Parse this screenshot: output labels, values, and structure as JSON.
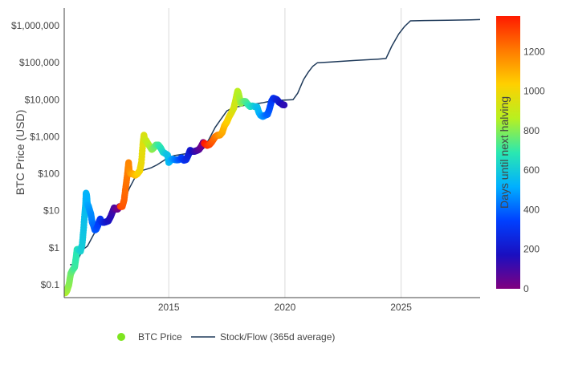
{
  "chart_data": {
    "type": "scatter",
    "ylabel": "BTC Price (USD)",
    "y_scale": "log",
    "ylim": [
      0.045,
      3000000
    ],
    "xlim": [
      2010.5,
      2028.4
    ],
    "y_ticks": [
      {
        "value": 0.1,
        "label": "$0.1"
      },
      {
        "value": 1,
        "label": "$1"
      },
      {
        "value": 10,
        "label": "$10"
      },
      {
        "value": 100,
        "label": "$100"
      },
      {
        "value": 1000,
        "label": "$1,000"
      },
      {
        "value": 10000,
        "label": "$10,000"
      },
      {
        "value": 100000,
        "label": "$100,000"
      },
      {
        "value": 1000000,
        "label": "$1,000,000"
      }
    ],
    "x_ticks": [
      {
        "value": 2015,
        "label": "2015"
      },
      {
        "value": 2020,
        "label": "2020"
      },
      {
        "value": 2025,
        "label": "2025"
      }
    ],
    "grid": {
      "x": true,
      "y": false
    },
    "colorbar": {
      "title": "Days until next halving",
      "range": [
        0,
        1380
      ],
      "ticks": [
        0,
        200,
        400,
        600,
        800,
        1000,
        1200
      ],
      "colorscale": [
        "#800080",
        "#1a0fc0",
        "#0040ff",
        "#00b0ff",
        "#2be8b0",
        "#b8f020",
        "#ffd000",
        "#ff7a00",
        "#ff1a00"
      ]
    },
    "legend": {
      "position": "bottom-center"
    },
    "series": [
      {
        "name": "BTC Price",
        "kind": "markers",
        "marker_color": "#7ee51f",
        "halvings": [
          2012.91,
          2016.52,
          2020.36
        ],
        "points": [
          [
            2010.55,
            0.06
          ],
          [
            2010.62,
            0.07
          ],
          [
            2010.7,
            0.1
          ],
          [
            2010.78,
            0.2
          ],
          [
            2010.86,
            0.25
          ],
          [
            2010.95,
            0.3
          ],
          [
            2011.0,
            0.5
          ],
          [
            2011.05,
            0.9
          ],
          [
            2011.12,
            0.9
          ],
          [
            2011.2,
            0.8
          ],
          [
            2011.27,
            1.2
          ],
          [
            2011.33,
            3
          ],
          [
            2011.38,
            8
          ],
          [
            2011.42,
            15
          ],
          [
            2011.44,
            30
          ],
          [
            2011.47,
            25
          ],
          [
            2011.5,
            15
          ],
          [
            2011.55,
            13
          ],
          [
            2011.6,
            10
          ],
          [
            2011.65,
            8
          ],
          [
            2011.7,
            5
          ],
          [
            2011.76,
            4
          ],
          [
            2011.82,
            3
          ],
          [
            2011.88,
            3.2
          ],
          [
            2011.95,
            4
          ],
          [
            2012.0,
            5
          ],
          [
            2012.05,
            6
          ],
          [
            2012.1,
            5
          ],
          [
            2012.2,
            4.8
          ],
          [
            2012.3,
            5
          ],
          [
            2012.4,
            5.3
          ],
          [
            2012.5,
            7
          ],
          [
            2012.6,
            10
          ],
          [
            2012.65,
            12
          ],
          [
            2012.7,
            11
          ],
          [
            2012.8,
            11
          ],
          [
            2012.88,
            13
          ],
          [
            2013.0,
            13
          ],
          [
            2013.08,
            20
          ],
          [
            2013.15,
            45
          ],
          [
            2013.22,
            100
          ],
          [
            2013.27,
            200
          ],
          [
            2013.3,
            120
          ],
          [
            2013.35,
            100
          ],
          [
            2013.45,
            100
          ],
          [
            2013.55,
            90
          ],
          [
            2013.65,
            100
          ],
          [
            2013.75,
            120
          ],
          [
            2013.82,
            200
          ],
          [
            2013.88,
            600
          ],
          [
            2013.93,
            1100
          ],
          [
            2013.97,
            800
          ],
          [
            2014.02,
            800
          ],
          [
            2014.1,
            650
          ],
          [
            2014.18,
            550
          ],
          [
            2014.27,
            450
          ],
          [
            2014.35,
            500
          ],
          [
            2014.45,
            600
          ],
          [
            2014.55,
            600
          ],
          [
            2014.65,
            500
          ],
          [
            2014.75,
            380
          ],
          [
            2014.85,
            350
          ],
          [
            2014.95,
            320
          ],
          [
            2015.0,
            200
          ],
          [
            2015.08,
            230
          ],
          [
            2015.15,
            250
          ],
          [
            2015.25,
            240
          ],
          [
            2015.35,
            235
          ],
          [
            2015.45,
            240
          ],
          [
            2015.55,
            270
          ],
          [
            2015.65,
            230
          ],
          [
            2015.75,
            240
          ],
          [
            2015.85,
            330
          ],
          [
            2015.92,
            430
          ],
          [
            2016.0,
            400
          ],
          [
            2016.1,
            400
          ],
          [
            2016.2,
            420
          ],
          [
            2016.3,
            450
          ],
          [
            2016.4,
            550
          ],
          [
            2016.48,
            700
          ],
          [
            2016.55,
            650
          ],
          [
            2016.65,
            580
          ],
          [
            2016.75,
            610
          ],
          [
            2016.85,
            720
          ],
          [
            2016.95,
            900
          ],
          [
            2017.0,
            1000
          ],
          [
            2017.1,
            1100
          ],
          [
            2017.2,
            1100
          ],
          [
            2017.3,
            1300
          ],
          [
            2017.4,
            2000
          ],
          [
            2017.5,
            2500
          ],
          [
            2017.6,
            3500
          ],
          [
            2017.7,
            4500
          ],
          [
            2017.8,
            6000
          ],
          [
            2017.88,
            10000
          ],
          [
            2017.96,
            17000
          ],
          [
            2018.0,
            15000
          ],
          [
            2018.05,
            11000
          ],
          [
            2018.1,
            8000
          ],
          [
            2018.2,
            9000
          ],
          [
            2018.3,
            9000
          ],
          [
            2018.4,
            7500
          ],
          [
            2018.5,
            6500
          ],
          [
            2018.6,
            6800
          ],
          [
            2018.7,
            6500
          ],
          [
            2018.8,
            6400
          ],
          [
            2018.88,
            4500
          ],
          [
            2018.95,
            3800
          ],
          [
            2019.05,
            3500
          ],
          [
            2019.15,
            3800
          ],
          [
            2019.25,
            4000
          ],
          [
            2019.33,
            5500
          ],
          [
            2019.42,
            9000
          ],
          [
            2019.5,
            11000
          ],
          [
            2019.58,
            10500
          ],
          [
            2019.66,
            10000
          ],
          [
            2019.75,
            8500
          ],
          [
            2019.83,
            8000
          ],
          [
            2019.9,
            7300
          ],
          [
            2019.97,
            7200
          ]
        ]
      },
      {
        "name": "Stock/Flow (365d average)",
        "kind": "line",
        "line_color": "#1f3a5a",
        "points": [
          [
            2010.75,
            0.35
          ],
          [
            2010.9,
            0.35
          ],
          [
            2011.1,
            0.5
          ],
          [
            2011.3,
            0.9
          ],
          [
            2011.5,
            1.1
          ],
          [
            2011.75,
            2.2
          ],
          [
            2012.0,
            4
          ],
          [
            2012.25,
            5.5
          ],
          [
            2012.5,
            7.5
          ],
          [
            2012.75,
            10
          ],
          [
            2012.95,
            11
          ],
          [
            2013.1,
            20
          ],
          [
            2013.3,
            40
          ],
          [
            2013.55,
            80
          ],
          [
            2013.8,
            120
          ],
          [
            2014.0,
            130
          ],
          [
            2014.25,
            145
          ],
          [
            2014.5,
            175
          ],
          [
            2014.75,
            220
          ],
          [
            2015.0,
            280
          ],
          [
            2015.25,
            310
          ],
          [
            2015.5,
            330
          ],
          [
            2015.75,
            350
          ],
          [
            2016.0,
            400
          ],
          [
            2016.25,
            440
          ],
          [
            2016.5,
            480
          ],
          [
            2016.75,
            900
          ],
          [
            2017.0,
            1800
          ],
          [
            2017.25,
            3000
          ],
          [
            2017.5,
            5000
          ],
          [
            2017.75,
            6000
          ],
          [
            2018.0,
            6500
          ],
          [
            2018.25,
            7000
          ],
          [
            2018.5,
            7200
          ],
          [
            2018.75,
            7700
          ],
          [
            2019.0,
            8200
          ],
          [
            2019.25,
            8800
          ],
          [
            2019.5,
            9300
          ],
          [
            2019.75,
            9600
          ],
          [
            2020.0,
            9800
          ],
          [
            2020.35,
            10000
          ],
          [
            2020.55,
            15000
          ],
          [
            2020.8,
            35000
          ],
          [
            2021.0,
            55000
          ],
          [
            2021.2,
            80000
          ],
          [
            2021.4,
            100000
          ],
          [
            2022.0,
            105000
          ],
          [
            2023.0,
            115000
          ],
          [
            2024.0,
            125000
          ],
          [
            2024.35,
            130000
          ],
          [
            2024.6,
            280000
          ],
          [
            2024.9,
            600000
          ],
          [
            2025.15,
            950000
          ],
          [
            2025.4,
            1350000
          ],
          [
            2026.0,
            1380000
          ],
          [
            2027.0,
            1400000
          ],
          [
            2028.0,
            1440000
          ],
          [
            2028.4,
            1460000
          ]
        ]
      }
    ]
  }
}
